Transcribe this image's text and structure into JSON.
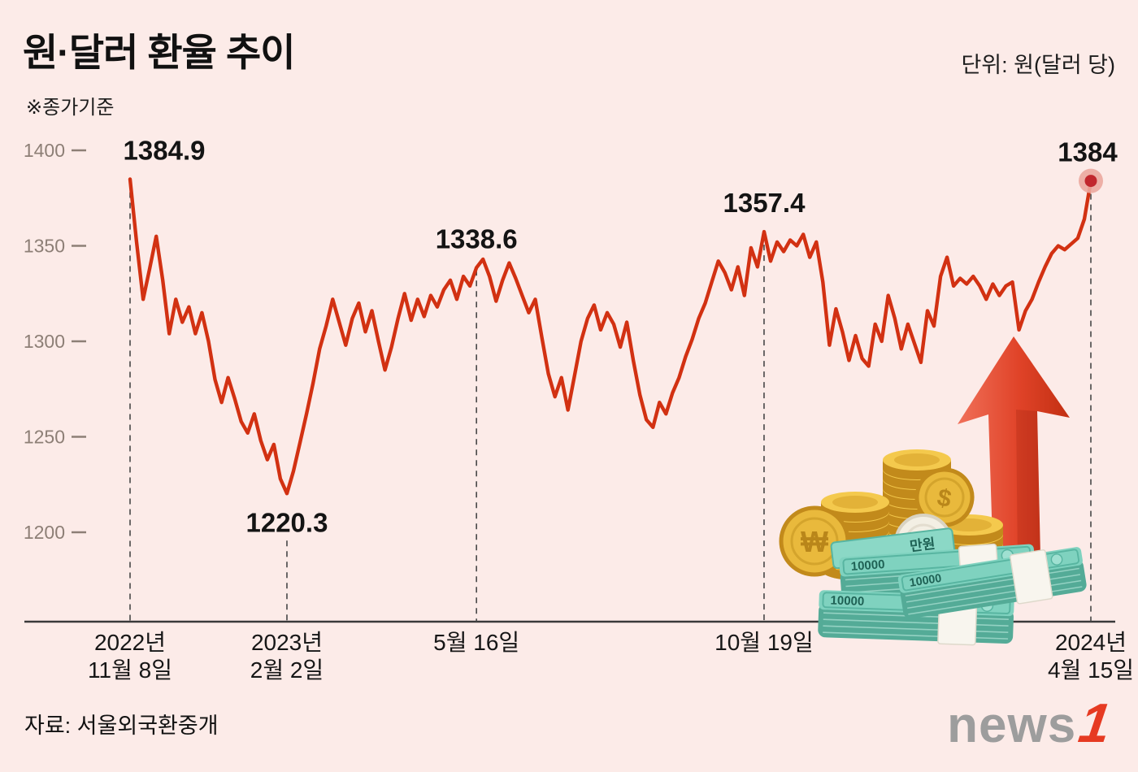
{
  "header": {
    "title": "원·달러 환율 추이",
    "subtitle": "※종가기준",
    "unit": "단위: 원(달러 당)"
  },
  "footer": {
    "source": "자료: 서울외국환중개",
    "logo_text": "news",
    "logo_one": "1"
  },
  "colors": {
    "background": "#fcebe8",
    "line": "#d23112",
    "axis": "#3a3a3a",
    "tick": "#8d7f76",
    "dashed": "#474747",
    "annotation": "#141414",
    "xlabel": "#161616",
    "marker": "#c1272d",
    "marker_halo": "#eba89e"
  },
  "illustration": {
    "banknote_label": "10000",
    "banknote_label_2": "만원",
    "coin_symbol_won": "₩",
    "coin_symbol_dollar": "$"
  },
  "chart_data": {
    "type": "line",
    "title": "원·달러 환율 추이",
    "note": "종가기준",
    "unit": "원(달러 당)",
    "x_start": "2022-11-08",
    "x_end": "2024-04-15",
    "ylim": [
      1200,
      1400
    ],
    "yticks": [
      1400,
      1350,
      1300,
      1250,
      1200
    ],
    "grid": false,
    "legend": "none",
    "values": [
      1384.9,
      1352,
      1322,
      1338,
      1355,
      1332,
      1304,
      1322,
      1310,
      1318,
      1304,
      1315,
      1300,
      1280,
      1268,
      1281,
      1270,
      1258,
      1252,
      1262,
      1248,
      1238,
      1246,
      1228,
      1220.3,
      1232,
      1247,
      1262,
      1278,
      1296,
      1308,
      1322,
      1310,
      1298,
      1312,
      1320,
      1305,
      1316,
      1300,
      1285,
      1297,
      1312,
      1325,
      1311,
      1322,
      1313,
      1324,
      1318,
      1327,
      1332,
      1322,
      1334,
      1329,
      1338.6,
      1343,
      1334,
      1321,
      1332,
      1341,
      1333,
      1324,
      1315,
      1322,
      1302,
      1283,
      1271,
      1281,
      1264,
      1282,
      1300,
      1312,
      1319,
      1306,
      1315,
      1309,
      1297,
      1310,
      1290,
      1272,
      1259,
      1255,
      1268,
      1262,
      1273,
      1281,
      1292,
      1301,
      1312,
      1320,
      1331,
      1342,
      1336,
      1327,
      1339,
      1324,
      1349,
      1339,
      1357.4,
      1342,
      1352,
      1347,
      1353,
      1350,
      1356,
      1344,
      1352,
      1331,
      1298,
      1317,
      1305,
      1290,
      1303,
      1291,
      1287,
      1309,
      1300,
      1324,
      1312,
      1296,
      1309,
      1299,
      1289,
      1316,
      1308,
      1334,
      1344,
      1329,
      1333,
      1330,
      1334,
      1329,
      1322,
      1330,
      1324,
      1329,
      1331,
      1306,
      1316,
      1322,
      1331,
      1339,
      1346,
      1350,
      1348,
      1351,
      1354,
      1364,
      1384
    ],
    "annotations": [
      {
        "index": 0,
        "value": 1384.9,
        "label": "1384.9",
        "date": "2022-11-08",
        "position": "above",
        "marker": false
      },
      {
        "index": 24,
        "value": 1220.3,
        "label": "1220.3",
        "date": "2023-02-02",
        "position": "below",
        "marker": false
      },
      {
        "index": 53,
        "value": 1338.6,
        "label": "1338.6",
        "date": "2023-05-16",
        "position": "above",
        "marker": false
      },
      {
        "index": 97,
        "value": 1357.4,
        "label": "1357.4",
        "date": "2023-10-19",
        "position": "above",
        "marker": false
      },
      {
        "index": 147,
        "value": 1384,
        "label": "1384",
        "date": "2024-04-15",
        "position": "above",
        "marker": true
      }
    ],
    "xticks": [
      {
        "index": 0,
        "lines": [
          "2022년",
          "11월 8일"
        ]
      },
      {
        "index": 24,
        "lines": [
          "2023년",
          "2월 2일"
        ]
      },
      {
        "index": 53,
        "lines": [
          "5월 16일"
        ]
      },
      {
        "index": 97,
        "lines": [
          "10월 19일"
        ]
      },
      {
        "index": 147,
        "lines": [
          "2024년",
          "4월 15일"
        ]
      }
    ]
  }
}
